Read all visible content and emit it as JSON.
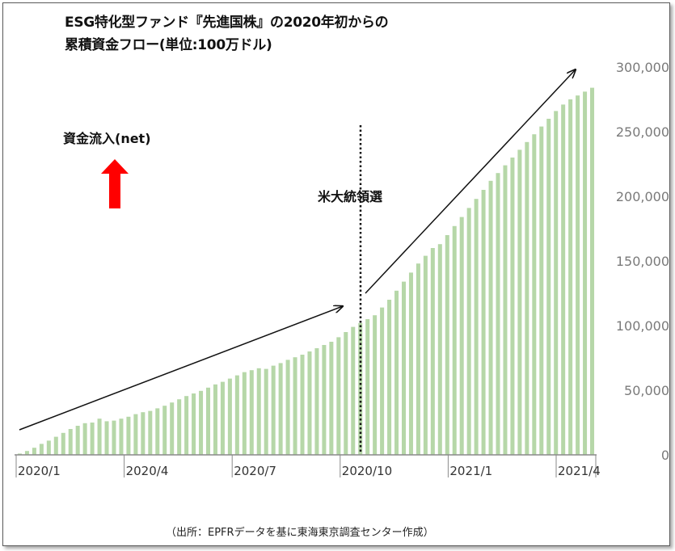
{
  "chart_data": {
    "type": "bar",
    "title_lines": [
      "ESG特化型ファンド『先進国株』の2020年初からの",
      "累積資金フロー(単位:100万ドル)"
    ],
    "x_tick_labels": [
      "2020/1",
      "2020/4",
      "2020/7",
      "2020/10",
      "2021/1",
      "2021/4"
    ],
    "y_tick_labels": [
      "0",
      "50,000",
      "100,000",
      "150,000",
      "200,000",
      "250,000",
      "300,000"
    ],
    "ylim": [
      0,
      300000
    ],
    "values": [
      1000,
      3000,
      5500,
      8500,
      11000,
      14000,
      17000,
      20000,
      22500,
      24500,
      25000,
      28000,
      26000,
      26500,
      28000,
      29500,
      31500,
      33000,
      34000,
      36000,
      38000,
      40500,
      43000,
      45500,
      47500,
      49500,
      52000,
      54500,
      56500,
      59000,
      61500,
      64000,
      65500,
      67000,
      66500,
      69000,
      71000,
      73500,
      75500,
      77500,
      80000,
      82500,
      85000,
      87500,
      91000,
      95000,
      99000,
      102000,
      105000,
      108000,
      114000,
      120000,
      127000,
      134000,
      141000,
      148000,
      154000,
      160000,
      163000,
      170000,
      177000,
      184000,
      191000,
      198000,
      205000,
      212000,
      218000,
      224000,
      230000,
      236000,
      242000,
      248000,
      254000,
      260000,
      266000,
      271000,
      275000,
      278000,
      281000,
      284000
    ],
    "annotations": {
      "inflow_label": "資金流入(net)",
      "election_label": "米大統領選"
    },
    "source": "（出所：EPFRデータを基に東海東京調査センター作成）",
    "colors": {
      "bar": "#b6d7a8",
      "arrow_up": "#ff0000",
      "axis": "#888888"
    }
  }
}
